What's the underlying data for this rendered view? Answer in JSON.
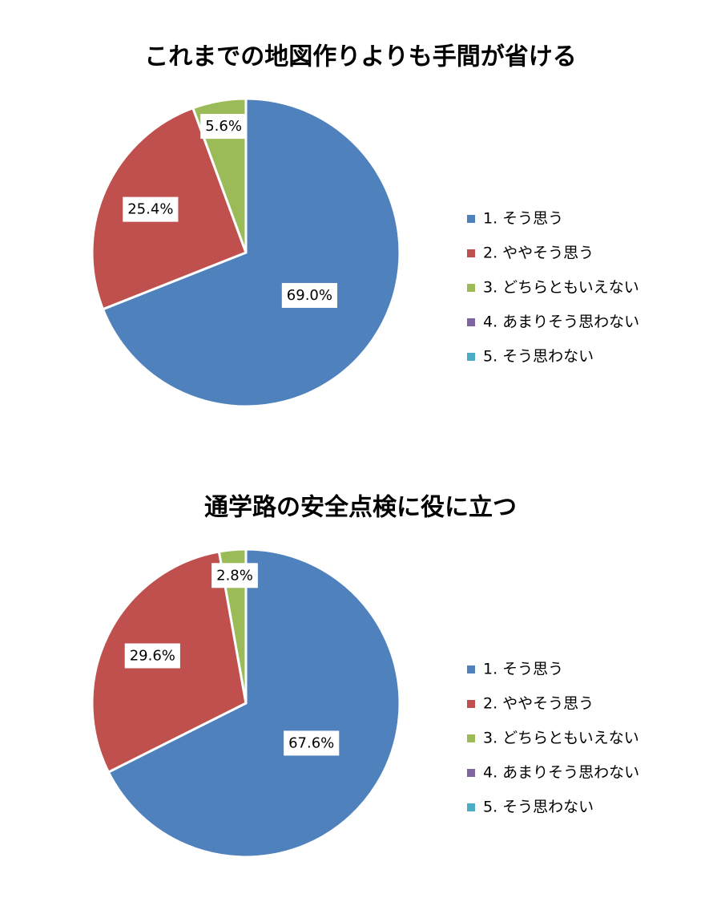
{
  "chart_data": [
    {
      "type": "pie",
      "title": "これまでの地図作りよりも手間が省ける",
      "categories": [
        "1. そう思う",
        "2. ややそう思う",
        "3. どちらともいえない",
        "4. あまりそう思わない",
        "5. そう思わない"
      ],
      "values": [
        69.0,
        25.4,
        5.6,
        0,
        0
      ],
      "value_labels": [
        "69.0%",
        "25.4%",
        "5.6%",
        null,
        null
      ],
      "colors": [
        "#4f81bd",
        "#c0504d",
        "#9bbb59",
        "#8064a2",
        "#4bacc6"
      ],
      "legend": "right"
    },
    {
      "type": "pie",
      "title": "通学路の安全点検に役に立つ",
      "categories": [
        "1. そう思う",
        "2. ややそう思う",
        "3. どちらともいえない",
        "4. あまりそう思わない",
        "5. そう思わない"
      ],
      "values": [
        67.6,
        29.6,
        2.8,
        0,
        0
      ],
      "value_labels": [
        "67.6%",
        "29.6%",
        "2.8%",
        null,
        null
      ],
      "colors": [
        "#4f81bd",
        "#c0504d",
        "#9bbb59",
        "#8064a2",
        "#4bacc6"
      ],
      "legend": "right"
    }
  ]
}
